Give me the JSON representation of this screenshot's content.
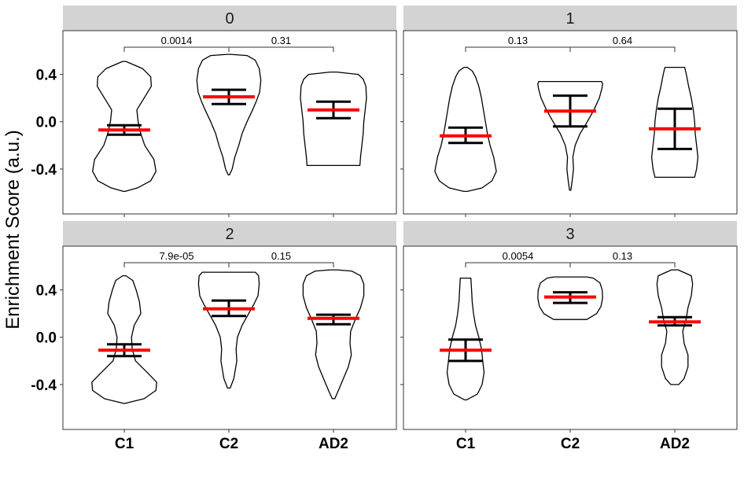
{
  "chart_data": {
    "type": "violin",
    "ylabel": "Enrichment Score (a.u.)",
    "xlabel": "",
    "categories": [
      "C1",
      "C2",
      "AD2"
    ],
    "ylim": [
      -0.78,
      0.77
    ],
    "yticks": [
      -0.4,
      0.0,
      0.4
    ],
    "ytick_labels": [
      "-0.4",
      "0.0",
      "0.4"
    ],
    "grid": false,
    "legend": "none",
    "colors": {
      "mean": "#ff0000",
      "error_bar": "#000000",
      "violin": "#000000",
      "strip": "#d3d3d3"
    },
    "panels": [
      {
        "title": "0",
        "comparisons": [
          {
            "from": "C1",
            "to": "C2",
            "label": "0.0014"
          },
          {
            "from": "C2",
            "to": "AD2",
            "label": "0.31"
          }
        ],
        "groups": [
          {
            "name": "C1",
            "mean": -0.07,
            "lower": -0.11,
            "upper": -0.03,
            "y_min": -0.59,
            "y_max": 0.51,
            "density": [
              [
                -0.59,
                0.02
              ],
              [
                -0.56,
                0.4
              ],
              [
                -0.5,
                0.8
              ],
              [
                -0.42,
                0.96
              ],
              [
                -0.32,
                0.9
              ],
              [
                -0.2,
                0.62
              ],
              [
                -0.1,
                0.5
              ],
              [
                0.0,
                0.42
              ],
              [
                0.1,
                0.38
              ],
              [
                0.2,
                0.6
              ],
              [
                0.3,
                0.82
              ],
              [
                0.38,
                0.8
              ],
              [
                0.45,
                0.55
              ],
              [
                0.51,
                0.05
              ]
            ]
          },
          {
            "name": "C2",
            "mean": 0.21,
            "lower": 0.15,
            "upper": 0.27,
            "y_min": -0.45,
            "y_max": 0.57,
            "density": [
              [
                -0.45,
                0.02
              ],
              [
                -0.4,
                0.1
              ],
              [
                -0.3,
                0.18
              ],
              [
                -0.2,
                0.3
              ],
              [
                -0.1,
                0.4
              ],
              [
                0.0,
                0.55
              ],
              [
                0.1,
                0.72
              ],
              [
                0.18,
                0.84
              ],
              [
                0.25,
                0.93
              ],
              [
                0.35,
                0.97
              ],
              [
                0.45,
                0.92
              ],
              [
                0.52,
                0.8
              ],
              [
                0.56,
                0.55
              ],
              [
                0.57,
                0.05
              ]
            ]
          },
          {
            "name": "AD2",
            "mean": 0.1,
            "lower": 0.03,
            "upper": 0.17,
            "y_min": -0.37,
            "y_max": 0.42,
            "density": [
              [
                -0.37,
                0.8
              ],
              [
                -0.3,
                0.82
              ],
              [
                -0.2,
                0.86
              ],
              [
                -0.1,
                0.9
              ],
              [
                0.0,
                0.92
              ],
              [
                0.1,
                0.96
              ],
              [
                0.2,
                1.0
              ],
              [
                0.3,
                0.98
              ],
              [
                0.36,
                0.9
              ],
              [
                0.4,
                0.75
              ],
              [
                0.42,
                0.1
              ]
            ]
          }
        ]
      },
      {
        "title": "1",
        "comparisons": [
          {
            "from": "C1",
            "to": "C2",
            "label": "0.13"
          },
          {
            "from": "C2",
            "to": "AD2",
            "label": "0.64"
          }
        ],
        "groups": [
          {
            "name": "C1",
            "mean": -0.12,
            "lower": -0.18,
            "upper": -0.05,
            "y_min": -0.59,
            "y_max": 0.46,
            "density": [
              [
                -0.59,
                0.05
              ],
              [
                -0.56,
                0.5
              ],
              [
                -0.5,
                0.8
              ],
              [
                -0.42,
                0.93
              ],
              [
                -0.3,
                0.85
              ],
              [
                -0.2,
                0.74
              ],
              [
                -0.1,
                0.66
              ],
              [
                0.0,
                0.6
              ],
              [
                0.1,
                0.54
              ],
              [
                0.2,
                0.48
              ],
              [
                0.3,
                0.4
              ],
              [
                0.38,
                0.3
              ],
              [
                0.43,
                0.2
              ],
              [
                0.46,
                0.05
              ]
            ]
          },
          {
            "name": "C2",
            "mean": 0.09,
            "lower": -0.04,
            "upper": 0.22,
            "y_min": -0.58,
            "y_max": 0.34,
            "density": [
              [
                -0.58,
                0.02
              ],
              [
                -0.5,
                0.06
              ],
              [
                -0.4,
                0.1
              ],
              [
                -0.3,
                0.08
              ],
              [
                -0.2,
                0.15
              ],
              [
                -0.1,
                0.3
              ],
              [
                0.0,
                0.52
              ],
              [
                0.1,
                0.72
              ],
              [
                0.2,
                0.88
              ],
              [
                0.28,
                0.96
              ],
              [
                0.32,
                0.98
              ],
              [
                0.34,
                0.95
              ]
            ]
          },
          {
            "name": "AD2",
            "mean": -0.06,
            "lower": -0.23,
            "upper": 0.11,
            "y_min": -0.47,
            "y_max": 0.46,
            "density": [
              [
                -0.47,
                0.6
              ],
              [
                -0.4,
                0.66
              ],
              [
                -0.3,
                0.7
              ],
              [
                -0.2,
                0.66
              ],
              [
                -0.1,
                0.62
              ],
              [
                0.0,
                0.6
              ],
              [
                0.1,
                0.56
              ],
              [
                0.2,
                0.5
              ],
              [
                0.3,
                0.42
              ],
              [
                0.4,
                0.35
              ],
              [
                0.46,
                0.3
              ]
            ]
          }
        ]
      },
      {
        "title": "2",
        "comparisons": [
          {
            "from": "C1",
            "to": "C2",
            "label": "7.9e-05"
          },
          {
            "from": "C2",
            "to": "AD2",
            "label": "0.15"
          }
        ],
        "groups": [
          {
            "name": "C1",
            "mean": -0.11,
            "lower": -0.16,
            "upper": -0.06,
            "y_min": -0.56,
            "y_max": 0.52,
            "density": [
              [
                -0.56,
                0.02
              ],
              [
                -0.52,
                0.6
              ],
              [
                -0.45,
                0.96
              ],
              [
                -0.38,
                0.98
              ],
              [
                -0.3,
                0.7
              ],
              [
                -0.2,
                0.34
              ],
              [
                -0.1,
                0.24
              ],
              [
                0.0,
                0.22
              ],
              [
                0.1,
                0.3
              ],
              [
                0.2,
                0.5
              ],
              [
                0.3,
                0.46
              ],
              [
                0.4,
                0.36
              ],
              [
                0.48,
                0.26
              ],
              [
                0.52,
                0.05
              ]
            ]
          },
          {
            "name": "C2",
            "mean": 0.24,
            "lower": 0.18,
            "upper": 0.31,
            "y_min": -0.43,
            "y_max": 0.55,
            "density": [
              [
                -0.43,
                0.04
              ],
              [
                -0.35,
                0.15
              ],
              [
                -0.2,
                0.24
              ],
              [
                -0.1,
                0.22
              ],
              [
                0.0,
                0.26
              ],
              [
                0.1,
                0.4
              ],
              [
                0.2,
                0.6
              ],
              [
                0.28,
                0.76
              ],
              [
                0.35,
                0.88
              ],
              [
                0.45,
                0.92
              ],
              [
                0.52,
                0.9
              ],
              [
                0.55,
                0.8
              ]
            ]
          },
          {
            "name": "AD2",
            "mean": 0.16,
            "lower": 0.11,
            "upper": 0.19,
            "y_min": -0.52,
            "y_max": 0.57,
            "density": [
              [
                -0.52,
                0.04
              ],
              [
                -0.45,
                0.15
              ],
              [
                -0.35,
                0.3
              ],
              [
                -0.25,
                0.45
              ],
              [
                -0.15,
                0.54
              ],
              [
                -0.05,
                0.5
              ],
              [
                0.05,
                0.52
              ],
              [
                0.15,
                0.66
              ],
              [
                0.25,
                0.82
              ],
              [
                0.35,
                0.92
              ],
              [
                0.45,
                0.92
              ],
              [
                0.52,
                0.82
              ],
              [
                0.56,
                0.55
              ],
              [
                0.57,
                0.1
              ]
            ]
          }
        ]
      },
      {
        "title": "3",
        "comparisons": [
          {
            "from": "C1",
            "to": "C2",
            "label": "0.0054"
          },
          {
            "from": "C2",
            "to": "AD2",
            "label": "0.13"
          }
        ],
        "groups": [
          {
            "name": "C1",
            "mean": -0.11,
            "lower": -0.2,
            "upper": -0.02,
            "y_min": -0.53,
            "y_max": 0.5,
            "density": [
              [
                -0.53,
                0.03
              ],
              [
                -0.48,
                0.36
              ],
              [
                -0.4,
                0.5
              ],
              [
                -0.3,
                0.56
              ],
              [
                -0.2,
                0.52
              ],
              [
                -0.1,
                0.48
              ],
              [
                0.0,
                0.4
              ],
              [
                0.1,
                0.3
              ],
              [
                0.2,
                0.24
              ],
              [
                0.3,
                0.2
              ],
              [
                0.4,
                0.18
              ],
              [
                0.5,
                0.16
              ]
            ]
          },
          {
            "name": "C2",
            "mean": 0.34,
            "lower": 0.29,
            "upper": 0.38,
            "y_min": 0.15,
            "y_max": 0.51,
            "density": [
              [
                0.15,
                0.5
              ],
              [
                0.2,
                0.8
              ],
              [
                0.26,
                0.93
              ],
              [
                0.33,
                0.98
              ],
              [
                0.4,
                0.97
              ],
              [
                0.46,
                0.9
              ],
              [
                0.5,
                0.7
              ],
              [
                0.51,
                0.5
              ]
            ]
          },
          {
            "name": "AD2",
            "mean": 0.13,
            "lower": 0.1,
            "upper": 0.17,
            "y_min": -0.4,
            "y_max": 0.57,
            "density": [
              [
                -0.4,
                0.12
              ],
              [
                -0.35,
                0.28
              ],
              [
                -0.25,
                0.4
              ],
              [
                -0.15,
                0.4
              ],
              [
                -0.05,
                0.28
              ],
              [
                0.05,
                0.24
              ],
              [
                0.15,
                0.34
              ],
              [
                0.25,
                0.4
              ],
              [
                0.35,
                0.5
              ],
              [
                0.45,
                0.54
              ],
              [
                0.52,
                0.5
              ],
              [
                0.57,
                0.1
              ]
            ]
          }
        ]
      }
    ]
  }
}
